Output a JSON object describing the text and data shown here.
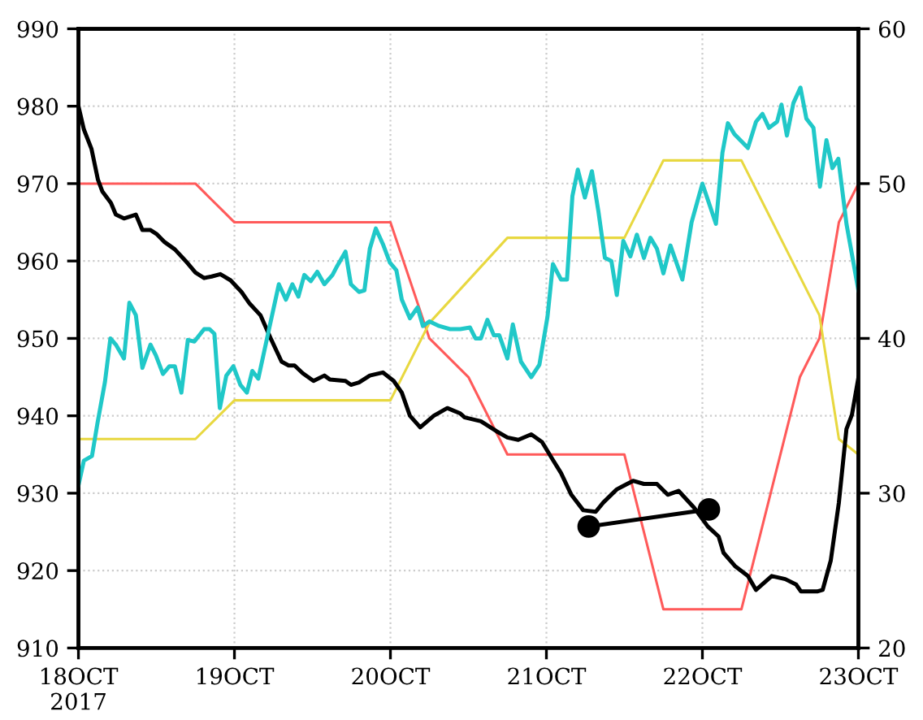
{
  "chart_data": {
    "type": "line",
    "xlim": [
      "2017-10-18",
      "2017-10-23"
    ],
    "xticks": [
      {
        "value": "2017-10-18",
        "label": "18OCT\n2017"
      },
      {
        "value": "2017-10-19",
        "label": "19OCT"
      },
      {
        "value": "2017-10-20",
        "label": "20OCT"
      },
      {
        "value": "2017-10-21",
        "label": "21OCT"
      },
      {
        "value": "2017-10-22",
        "label": "22OCT"
      },
      {
        "value": "2017-10-23",
        "label": "23OCT"
      }
    ],
    "ylim": [
      910,
      990
    ],
    "yticks": [
      910,
      920,
      930,
      940,
      950,
      960,
      970,
      980,
      990
    ],
    "y2lim": [
      20,
      60
    ],
    "y2ticks": [
      20,
      30,
      40,
      50,
      60
    ],
    "grid": true,
    "line_style": "solid",
    "series": [
      {
        "color": "#ff5a5a",
        "axis": "y",
        "x": [
          "2017-10-18T00:00",
          "2017-10-18T18:00",
          "2017-10-19T00:00",
          "2017-10-20T00:00",
          "2017-10-20T06:00",
          "2017-10-20T12:00",
          "2017-10-20T18:00",
          "2017-10-21T12:00",
          "2017-10-21T18:00",
          "2017-10-22T06:00",
          "2017-10-22T15:00",
          "2017-10-22T18:00",
          "2017-10-22T21:00",
          "2017-10-23T00:00"
        ],
        "values": [
          970,
          970,
          965,
          965,
          950,
          945,
          935,
          935,
          915,
          915,
          945,
          950,
          965,
          970
        ]
      },
      {
        "color": "#e8d840",
        "axis": "y",
        "x": [
          "2017-10-18T00:00",
          "2017-10-18T18:00",
          "2017-10-19T00:00",
          "2017-10-20T00:00",
          "2017-10-20T06:00",
          "2017-10-20T18:00",
          "2017-10-21T12:00",
          "2017-10-21T18:00",
          "2017-10-22T06:00",
          "2017-10-22T18:00",
          "2017-10-22T21:00",
          "2017-10-23T00:00"
        ],
        "values": [
          937,
          937,
          942,
          942,
          952,
          963,
          963,
          973,
          973,
          953,
          937,
          935
        ]
      },
      {
        "color": "#20c8c8",
        "axis": "y2",
        "x": [
          "2017-10-18T00:00",
          "2017-10-18T00:50",
          "2017-10-18T02:05",
          "2017-10-18T02:55",
          "2017-10-18T04:05",
          "2017-10-18T04:55",
          "2017-10-18T05:45",
          "2017-10-18T07:00",
          "2017-10-18T07:50",
          "2017-10-18T08:50",
          "2017-10-18T09:50",
          "2017-10-18T11:05",
          "2017-10-18T11:55",
          "2017-10-18T13:00",
          "2017-10-18T14:00",
          "2017-10-18T14:50",
          "2017-10-18T15:50",
          "2017-10-18T16:50",
          "2017-10-18T17:50",
          "2017-10-18T19:20",
          "2017-10-18T20:10",
          "2017-10-18T20:55",
          "2017-10-18T21:45",
          "2017-10-18T22:45",
          "2017-10-18T23:50",
          "2017-10-19T00:55",
          "2017-10-19T01:55",
          "2017-10-19T02:45",
          "2017-10-19T03:40",
          "2017-10-19T05:10",
          "2017-10-19T06:50",
          "2017-10-19T07:55",
          "2017-10-19T08:55",
          "2017-10-19T09:50",
          "2017-10-19T10:45",
          "2017-10-19T11:45",
          "2017-10-19T12:45",
          "2017-10-19T13:50",
          "2017-10-19T15:05",
          "2017-10-19T15:50",
          "2017-10-19T17:05",
          "2017-10-19T17:55",
          "2017-10-19T19:10",
          "2017-10-19T20:00",
          "2017-10-19T20:50",
          "2017-10-19T21:45",
          "2017-10-19T22:50",
          "2017-10-19T23:55",
          "2017-10-20T00:55",
          "2017-10-20T01:45",
          "2017-10-20T03:00",
          "2017-10-20T04:10",
          "2017-10-20T05:00",
          "2017-10-20T06:00",
          "2017-10-20T07:30",
          "2017-10-20T09:10",
          "2017-10-20T10:45",
          "2017-10-20T12:15",
          "2017-10-20T13:05",
          "2017-10-20T13:55",
          "2017-10-20T14:55",
          "2017-10-20T15:55",
          "2017-10-20T16:45",
          "2017-10-20T18:00",
          "2017-10-20T18:50",
          "2017-10-20T20:05",
          "2017-10-20T21:40",
          "2017-10-20T22:55",
          "2017-10-21T00:10",
          "2017-10-21T01:00",
          "2017-10-21T02:15",
          "2017-10-21T03:10",
          "2017-10-21T04:00",
          "2017-10-21T04:50",
          "2017-10-21T05:55",
          "2017-10-21T07:00",
          "2017-10-21T08:00",
          "2017-10-21T09:00",
          "2017-10-21T10:00",
          "2017-10-21T10:50",
          "2017-10-21T11:50",
          "2017-10-21T12:55",
          "2017-10-21T13:55",
          "2017-10-21T15:00",
          "2017-10-21T16:00",
          "2017-10-21T17:00",
          "2017-10-21T18:00",
          "2017-10-21T19:05",
          "2017-10-21T20:55",
          "2017-10-21T22:20",
          "2017-10-22T00:00",
          "2017-10-22T02:05",
          "2017-10-22T03:05",
          "2017-10-22T03:55",
          "2017-10-22T04:55",
          "2017-10-22T07:00",
          "2017-10-22T08:15",
          "2017-10-22T09:15",
          "2017-10-22T10:15",
          "2017-10-22T11:30",
          "2017-10-22T12:10",
          "2017-10-22T13:00",
          "2017-10-22T14:00",
          "2017-10-22T15:05",
          "2017-10-22T16:00",
          "2017-10-22T17:05",
          "2017-10-22T18:05",
          "2017-10-22T19:05",
          "2017-10-22T20:00",
          "2017-10-22T20:55",
          "2017-10-22T22:10",
          "2017-10-23T00:00"
        ],
        "values": [
          30.5,
          32.1,
          32.4,
          34.5,
          37.2,
          40.0,
          39.6,
          38.7,
          42.3,
          41.5,
          38.1,
          39.6,
          38.9,
          37.7,
          38.2,
          38.2,
          36.5,
          39.9,
          39.8,
          40.6,
          40.6,
          40.3,
          35.5,
          37.6,
          38.2,
          37.0,
          36.5,
          37.9,
          37.4,
          40.3,
          43.5,
          42.5,
          43.5,
          42.7,
          44.1,
          43.7,
          44.3,
          43.5,
          44.1,
          44.7,
          45.6,
          43.5,
          43.0,
          43.1,
          45.8,
          47.1,
          46.1,
          44.9,
          44.4,
          42.5,
          41.3,
          42.0,
          40.8,
          41.1,
          40.8,
          40.6,
          40.6,
          40.7,
          40.0,
          40.0,
          41.2,
          40.2,
          40.2,
          38.7,
          40.9,
          38.5,
          37.5,
          38.3,
          41.4,
          44.8,
          43.8,
          43.8,
          49.2,
          50.9,
          49.1,
          50.8,
          48.2,
          45.2,
          45.0,
          42.8,
          46.3,
          45.3,
          46.7,
          45.2,
          46.5,
          45.8,
          44.2,
          46.0,
          43.8,
          47.5,
          50.0,
          47.4,
          52.0,
          53.9,
          53.2,
          52.3,
          54.0,
          54.5,
          53.6,
          54.0,
          55.1,
          53.1,
          55.2,
          56.2,
          54.2,
          53.6,
          49.8,
          52.8,
          51.0,
          51.6,
          47.4,
          43.1
        ]
      },
      {
        "color": "#000000",
        "axis": "y",
        "x": [
          "2017-10-18T00:00",
          "2017-10-18T00:50",
          "2017-10-18T02:00",
          "2017-10-18T03:00",
          "2017-10-18T03:40",
          "2017-10-18T05:00",
          "2017-10-18T05:45",
          "2017-10-18T07:00",
          "2017-10-18T08:50",
          "2017-10-18T09:50",
          "2017-10-18T11:05",
          "2017-10-18T12:00",
          "2017-10-18T13:10",
          "2017-10-18T14:50",
          "2017-10-18T16:30",
          "2017-10-18T18:00",
          "2017-10-18T19:20",
          "2017-10-18T20:30",
          "2017-10-18T21:50",
          "2017-10-18T23:25",
          "2017-10-19T01:05",
          "2017-10-19T02:20",
          "2017-10-19T04:00",
          "2017-10-19T05:35",
          "2017-10-19T07:15",
          "2017-10-19T08:20",
          "2017-10-19T09:15",
          "2017-10-19T10:30",
          "2017-10-19T12:10",
          "2017-10-19T13:50",
          "2017-10-19T14:40",
          "2017-10-19T17:05",
          "2017-10-19T17:55",
          "2017-10-19T19:10",
          "2017-10-19T20:50",
          "2017-10-19T22:50",
          "2017-10-20T00:30",
          "2017-10-20T01:45",
          "2017-10-20T03:00",
          "2017-10-20T04:35",
          "2017-10-20T06:40",
          "2017-10-20T08:45",
          "2017-10-20T10:45",
          "2017-10-20T11:25",
          "2017-10-20T13:55",
          "2017-10-20T16:20",
          "2017-10-20T18:00",
          "2017-10-20T19:40",
          "2017-10-20T21:40",
          "2017-10-20T23:20",
          "2017-10-21T01:00",
          "2017-10-21T02:15",
          "2017-10-21T03:50",
          "2017-10-21T05:40",
          "2017-10-21T07:35",
          "2017-10-21T08:45",
          "2017-10-21T10:50",
          "2017-10-21T13:20",
          "2017-10-21T15:00",
          "2017-10-21T17:00",
          "2017-10-21T18:40",
          "2017-10-21T20:20",
          "2017-10-21T22:45",
          "2017-10-22T00:50",
          "2017-10-22T02:30",
          "2017-10-22T03:15",
          "2017-10-22T05:00",
          "2017-10-22T07:00",
          "2017-10-22T08:15",
          "2017-10-22T10:40",
          "2017-10-22T12:45",
          "2017-10-22T14:25",
          "2017-10-22T15:10",
          "2017-10-22T17:40",
          "2017-10-22T18:30",
          "2017-10-22T19:45",
          "2017-10-22T21:00",
          "2017-10-22T22:10",
          "2017-10-22T23:00",
          "2017-10-23T00:00"
        ],
        "values": [
          980,
          977,
          974.5,
          970.5,
          969,
          967.5,
          966,
          965.5,
          966,
          964,
          964,
          963.5,
          962.5,
          961.5,
          960,
          958.5,
          957.8,
          958,
          958.3,
          957.5,
          956,
          954.5,
          953,
          950,
          947,
          946.5,
          946.5,
          945.5,
          944.5,
          945.2,
          944.7,
          944.5,
          944,
          944.3,
          945.2,
          945.6,
          944.5,
          943,
          940,
          938.5,
          940,
          941,
          940.3,
          939.8,
          939.3,
          938,
          937.2,
          936.9,
          937.6,
          936.6,
          934.3,
          932.6,
          929.8,
          927.8,
          927.6,
          928.8,
          930.5,
          931.6,
          931.2,
          931.2,
          929.8,
          930.3,
          928.1,
          925.7,
          924.4,
          922.3,
          920.6,
          919.3,
          917.5,
          919.3,
          918.9,
          918.2,
          917.3,
          917.3,
          917.5,
          921.3,
          928.8,
          938.3,
          940.1,
          944.9
        ]
      },
      {
        "color": "#000000",
        "axis": "y",
        "marker": "circle",
        "x": [
          "2017-10-21T06:30",
          "2017-10-22T01:00"
        ],
        "values": [
          925.7,
          927.9
        ]
      }
    ]
  }
}
